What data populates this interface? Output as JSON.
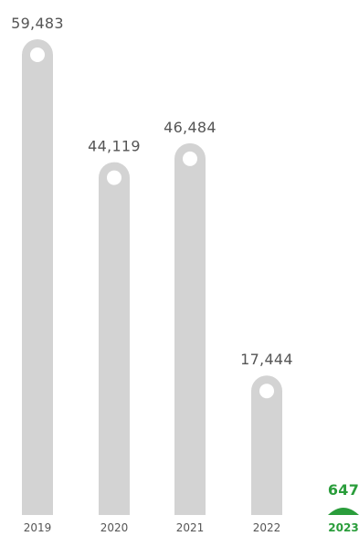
{
  "chart_data": {
    "type": "bar",
    "categories": [
      "2019",
      "2020",
      "2021",
      "2022",
      "2023"
    ],
    "values": [
      59483,
      44119,
      46484,
      17444,
      647
    ],
    "value_labels": [
      "59,483",
      "44,119",
      "46,484",
      "17,444",
      "647"
    ],
    "highlight_index": 4,
    "title": "",
    "xlabel": "",
    "ylabel": "",
    "ylim": [
      0,
      59483
    ],
    "grid": false,
    "legend": "none",
    "colors": {
      "bar": "#d3d3d3",
      "highlight": "#2a9d3b",
      "marker": "#ffffff",
      "text": "#555555"
    }
  }
}
